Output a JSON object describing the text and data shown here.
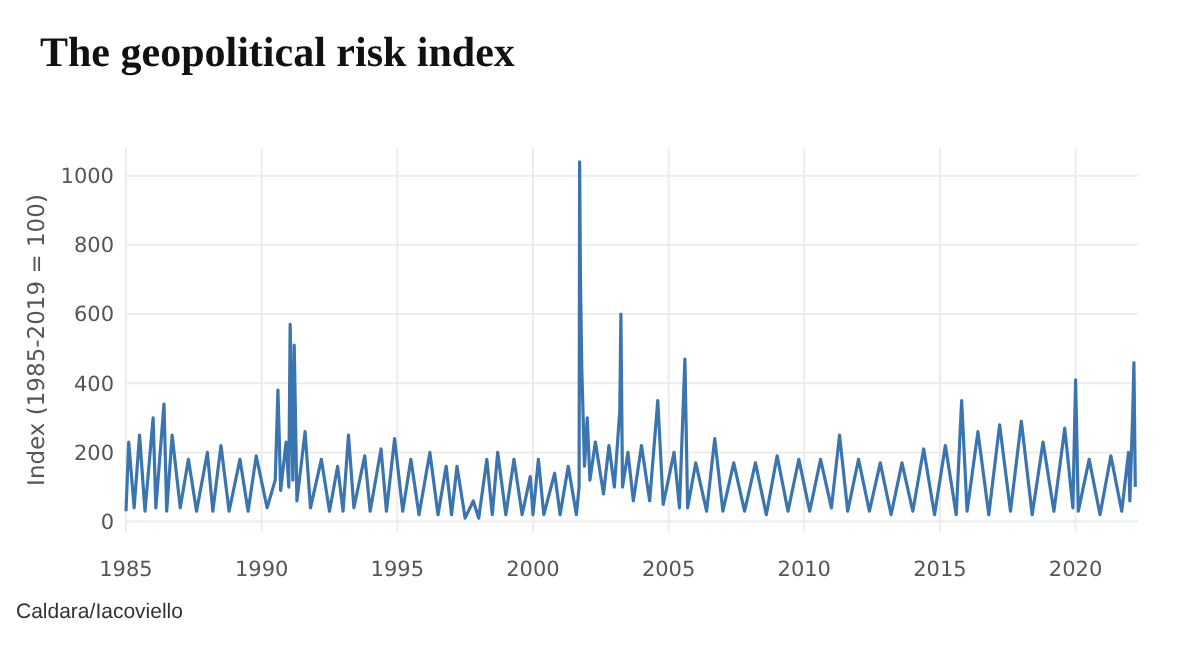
{
  "chart_data": {
    "type": "line",
    "title": "The geopolitical risk index",
    "ylabel": "Index (1985-2019 = 100)",
    "annotations": [
      "Caldara/Iacoviello"
    ],
    "x": [
      1985.0,
      1985.1,
      1985.3,
      1985.5,
      1985.7,
      1986.0,
      1986.1,
      1986.4,
      1986.5,
      1986.7,
      1987.0,
      1987.3,
      1987.6,
      1988.0,
      1988.2,
      1988.5,
      1988.8,
      1989.2,
      1989.5,
      1989.8,
      1990.2,
      1990.5,
      1990.6,
      1990.7,
      1990.9,
      1991.0,
      1991.05,
      1991.15,
      1991.2,
      1991.3,
      1991.6,
      1991.8,
      1992.2,
      1992.5,
      1992.8,
      1993.0,
      1993.2,
      1993.4,
      1993.8,
      1994.0,
      1994.4,
      1994.6,
      1994.9,
      1995.2,
      1995.5,
      1995.8,
      1996.2,
      1996.5,
      1996.8,
      1997.0,
      1997.2,
      1997.5,
      1997.8,
      1998.0,
      1998.3,
      1998.5,
      1998.7,
      1999.0,
      1999.3,
      1999.6,
      1999.9,
      2000.0,
      2000.2,
      2000.4,
      2000.8,
      2001.0,
      2001.3,
      2001.6,
      2001.7,
      2001.72,
      2001.75,
      2001.8,
      2001.9,
      2002.0,
      2002.1,
      2002.3,
      2002.6,
      2002.8,
      2003.0,
      2003.2,
      2003.24,
      2003.3,
      2003.5,
      2003.7,
      2004.0,
      2004.3,
      2004.6,
      2004.8,
      2005.2,
      2005.4,
      2005.6,
      2005.7,
      2006.0,
      2006.4,
      2006.7,
      2007.0,
      2007.4,
      2007.8,
      2008.2,
      2008.6,
      2009.0,
      2009.4,
      2009.8,
      2010.2,
      2010.6,
      2011.0,
      2011.3,
      2011.6,
      2012.0,
      2012.4,
      2012.8,
      2013.2,
      2013.6,
      2014.0,
      2014.4,
      2014.8,
      2015.2,
      2015.6,
      2015.8,
      2016.0,
      2016.4,
      2016.8,
      2017.2,
      2017.6,
      2018.0,
      2018.4,
      2018.8,
      2019.2,
      2019.6,
      2019.9,
      2020.0,
      2020.1,
      2020.5,
      2020.9,
      2021.3,
      2021.7,
      2021.95,
      2022.0,
      2022.1,
      2022.15,
      2022.2
    ],
    "series": [
      {
        "color": "#3a75b0",
        "values": [
          30,
          230,
          40,
          250,
          30,
          300,
          40,
          340,
          30,
          250,
          40,
          180,
          30,
          200,
          30,
          220,
          30,
          180,
          30,
          190,
          40,
          120,
          380,
          90,
          230,
          100,
          570,
          120,
          510,
          60,
          260,
          40,
          180,
          30,
          160,
          30,
          250,
          40,
          190,
          30,
          210,
          30,
          240,
          30,
          180,
          20,
          200,
          20,
          160,
          20,
          160,
          10,
          60,
          10,
          180,
          20,
          200,
          20,
          180,
          20,
          130,
          20,
          180,
          20,
          140,
          20,
          160,
          20,
          100,
          1040,
          700,
          440,
          160,
          300,
          120,
          230,
          80,
          220,
          100,
          320,
          600,
          100,
          200,
          60,
          220,
          60,
          350,
          50,
          200,
          40,
          470,
          40,
          170,
          30,
          240,
          30,
          170,
          30,
          170,
          20,
          190,
          30,
          180,
          30,
          180,
          40,
          250,
          30,
          180,
          30,
          170,
          20,
          170,
          30,
          210,
          20,
          220,
          20,
          350,
          30,
          260,
          20,
          280,
          30,
          290,
          20,
          230,
          30,
          270,
          40,
          410,
          30,
          180,
          20,
          190,
          30,
          200,
          60,
          300,
          460,
          100
        ]
      }
    ],
    "xlim": [
      1985,
      2022.3
    ],
    "xticks": [
      1985,
      1990,
      1995,
      2000,
      2005,
      2010,
      2015,
      2020
    ],
    "ylim": [
      -30,
      1080
    ],
    "yticks": [
      0,
      200,
      400,
      600,
      800,
      1000
    ],
    "grid": true,
    "line_style": "solid",
    "marker": "none"
  }
}
